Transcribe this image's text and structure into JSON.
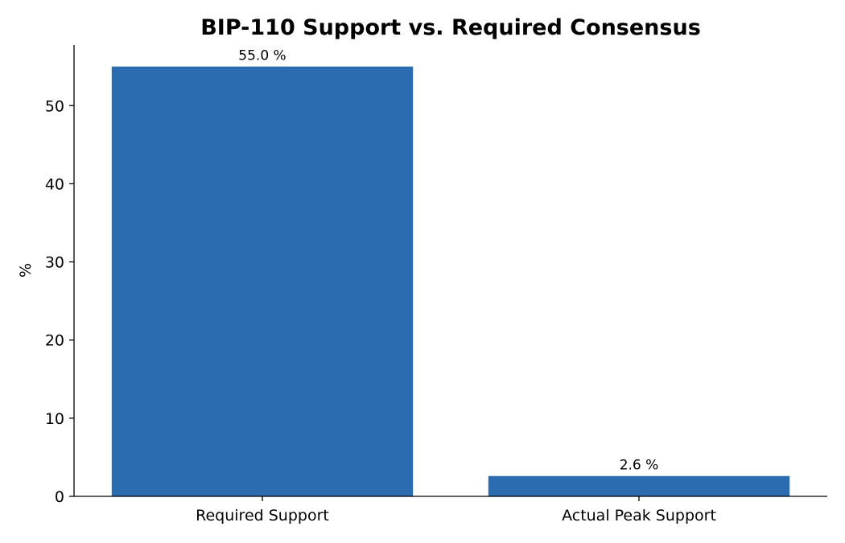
{
  "chart_data": {
    "type": "bar",
    "title": "BIP-110 Support vs. Required Consensus",
    "xlabel": "",
    "ylabel": "%",
    "categories": [
      "Required Support",
      "Actual Peak Support"
    ],
    "values": [
      55.0,
      2.6
    ],
    "data_labels": [
      "55.0 %",
      "2.6 %"
    ],
    "ylim": [
      0,
      57.75
    ],
    "yticks": [
      0,
      10,
      20,
      30,
      40,
      50
    ],
    "grid": false,
    "legend": "none",
    "bar_color": "#2b6cb0"
  }
}
